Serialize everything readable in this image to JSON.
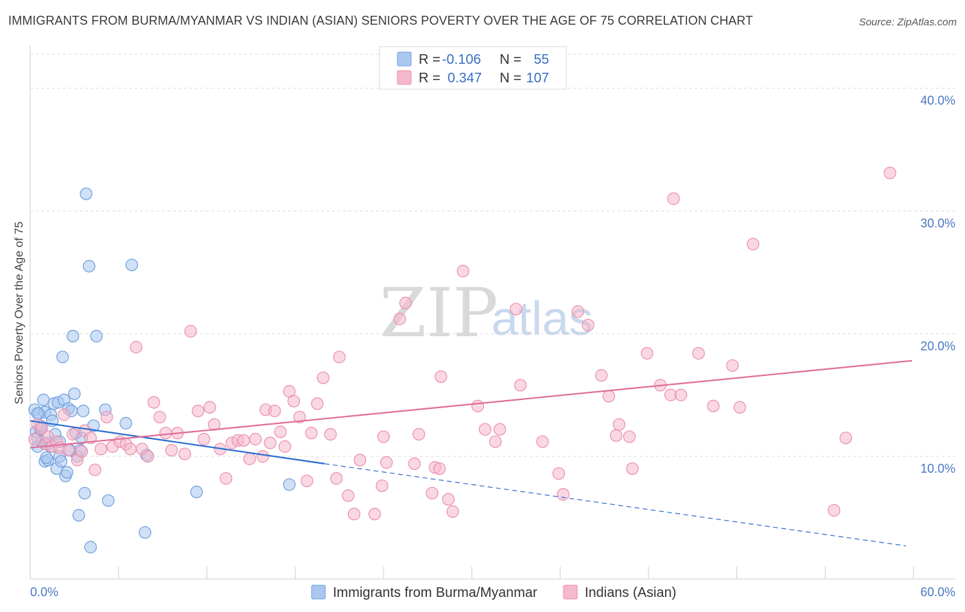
{
  "title": "IMMIGRANTS FROM BURMA/MYANMAR VS INDIAN (ASIAN) SENIORS POVERTY OVER THE AGE OF 75 CORRELATION CHART",
  "source": "Source: ZipAtlas.com",
  "watermark": {
    "zip": "ZIP",
    "atlas": "atlas"
  },
  "legend": {
    "rows": [
      {
        "r_label": "R =",
        "r_value": "-0.106",
        "n_label": "N =",
        "n_value": "55",
        "color": "#a9c7ef"
      },
      {
        "r_label": "R =",
        "r_value": "0.347",
        "n_label": "N =",
        "n_value": "107",
        "color": "#f6b8cb"
      }
    ]
  },
  "bottom_legend": [
    {
      "label": "Immigrants from Burma/Myanmar",
      "color": "#a9c7ef"
    },
    {
      "label": "Indians (Asian)",
      "color": "#f6b8cb"
    }
  ],
  "chart_data": {
    "type": "scatter",
    "title": "IMMIGRANTS FROM BURMA/MYANMAR VS INDIAN (ASIAN) SENIORS POVERTY OVER THE AGE OF 75 CORRELATION CHART",
    "xlabel": "",
    "ylabel": "Seniors Poverty Over the Age of 75",
    "xlim": [
      0,
      60
    ],
    "ylim": [
      0,
      43
    ],
    "x_tick_labels": [
      "0.0%",
      "60.0%"
    ],
    "y_ticks": [
      10,
      20,
      30,
      40
    ],
    "y_tick_labels": [
      "10.0%",
      "20.0%",
      "30.0%",
      "40.0%"
    ],
    "grid": true,
    "series": [
      {
        "name": "Immigrants from Burma/Myanmar",
        "color": "#a9c7ef",
        "edge": "#6f9fdc",
        "trend": {
          "x0": 0,
          "y0": 12.9,
          "x1": 20,
          "y1": 9.4,
          "dash_to_x": 59.5,
          "dash_to_y": 2.7,
          "color": "#2f6fd0"
        },
        "points": [
          [
            0.3,
            13.8
          ],
          [
            0.4,
            12.0
          ],
          [
            0.5,
            11.5
          ],
          [
            0.5,
            10.8
          ],
          [
            0.6,
            13.5
          ],
          [
            0.7,
            12.2
          ],
          [
            0.8,
            11.2
          ],
          [
            0.9,
            14.6
          ],
          [
            1.0,
            13.6
          ],
          [
            1.1,
            11.0
          ],
          [
            1.0,
            9.6
          ],
          [
            1.2,
            9.7
          ],
          [
            1.3,
            11.1
          ],
          [
            1.4,
            13.4
          ],
          [
            1.5,
            12.9
          ],
          [
            1.6,
            14.3
          ],
          [
            1.7,
            11.8
          ],
          [
            1.8,
            9.0
          ],
          [
            1.9,
            14.4
          ],
          [
            2.0,
            10.0
          ],
          [
            2.1,
            9.6
          ],
          [
            2.2,
            18.1
          ],
          [
            2.3,
            14.6
          ],
          [
            2.4,
            8.4
          ],
          [
            2.5,
            8.7
          ],
          [
            2.6,
            13.9
          ],
          [
            2.7,
            10.5
          ],
          [
            2.8,
            13.7
          ],
          [
            2.9,
            19.8
          ],
          [
            3.0,
            15.1
          ],
          [
            3.1,
            11.9
          ],
          [
            3.2,
            10.0
          ],
          [
            3.3,
            5.2
          ],
          [
            3.5,
            11.5
          ],
          [
            3.6,
            13.7
          ],
          [
            3.7,
            7.0
          ],
          [
            3.8,
            31.4
          ],
          [
            4.0,
            25.5
          ],
          [
            4.1,
            2.6
          ],
          [
            4.3,
            12.5
          ],
          [
            4.5,
            19.8
          ],
          [
            5.1,
            13.8
          ],
          [
            5.3,
            6.4
          ],
          [
            6.5,
            12.7
          ],
          [
            6.9,
            25.6
          ],
          [
            7.8,
            3.8
          ],
          [
            7.9,
            10.1
          ],
          [
            11.3,
            7.1
          ],
          [
            17.6,
            7.7
          ],
          [
            0.5,
            13.5
          ],
          [
            1.4,
            10.8
          ],
          [
            2.0,
            11.2
          ],
          [
            0.7,
            12.5
          ],
          [
            3.4,
            10.5
          ],
          [
            1.1,
            9.9
          ]
        ]
      },
      {
        "name": "Indians (Asian)",
        "color": "#f6b8cb",
        "edge": "#ea8fad",
        "trend": {
          "x0": 0,
          "y0": 10.7,
          "x1": 59.9,
          "y1": 17.8,
          "color": "#e0719a"
        },
        "points": [
          [
            0.3,
            11.4
          ],
          [
            0.5,
            12.6
          ],
          [
            0.8,
            12.3
          ],
          [
            1.0,
            11.0
          ],
          [
            1.2,
            11.6
          ],
          [
            1.5,
            10.8
          ],
          [
            1.8,
            11.2
          ],
          [
            2.0,
            10.7
          ],
          [
            2.3,
            13.4
          ],
          [
            2.6,
            10.5
          ],
          [
            2.9,
            11.8
          ],
          [
            3.2,
            9.7
          ],
          [
            3.5,
            10.4
          ],
          [
            3.7,
            12.1
          ],
          [
            4.1,
            11.5
          ],
          [
            4.4,
            8.9
          ],
          [
            4.8,
            10.6
          ],
          [
            5.2,
            13.2
          ],
          [
            5.6,
            10.8
          ],
          [
            6.1,
            11.2
          ],
          [
            6.5,
            11.0
          ],
          [
            6.8,
            10.6
          ],
          [
            7.2,
            18.9
          ],
          [
            7.6,
            10.6
          ],
          [
            8.0,
            10.0
          ],
          [
            8.4,
            14.4
          ],
          [
            8.8,
            13.2
          ],
          [
            9.2,
            11.9
          ],
          [
            9.6,
            10.5
          ],
          [
            10.0,
            11.9
          ],
          [
            10.5,
            10.2
          ],
          [
            10.9,
            20.2
          ],
          [
            11.4,
            13.7
          ],
          [
            11.8,
            11.4
          ],
          [
            12.2,
            14.0
          ],
          [
            12.5,
            12.6
          ],
          [
            12.9,
            10.6
          ],
          [
            13.3,
            8.2
          ],
          [
            13.7,
            11.1
          ],
          [
            14.1,
            11.3
          ],
          [
            14.5,
            11.3
          ],
          [
            14.9,
            9.8
          ],
          [
            15.3,
            11.4
          ],
          [
            15.8,
            10.0
          ],
          [
            16.0,
            13.8
          ],
          [
            16.3,
            11.1
          ],
          [
            16.6,
            13.7
          ],
          [
            17.0,
            12.0
          ],
          [
            17.3,
            10.8
          ],
          [
            17.6,
            15.3
          ],
          [
            17.9,
            14.5
          ],
          [
            18.3,
            13.2
          ],
          [
            18.8,
            8.0
          ],
          [
            19.1,
            11.9
          ],
          [
            19.5,
            14.3
          ],
          [
            19.9,
            16.4
          ],
          [
            20.4,
            11.8
          ],
          [
            20.8,
            8.2
          ],
          [
            21.0,
            18.1
          ],
          [
            21.6,
            6.8
          ],
          [
            22.0,
            5.3
          ],
          [
            22.4,
            9.7
          ],
          [
            23.4,
            5.3
          ],
          [
            23.9,
            7.6
          ],
          [
            24.0,
            11.6
          ],
          [
            24.2,
            9.5
          ],
          [
            25.1,
            21.2
          ],
          [
            25.5,
            22.5
          ],
          [
            26.1,
            9.4
          ],
          [
            26.4,
            11.8
          ],
          [
            27.3,
            7.0
          ],
          [
            27.5,
            9.1
          ],
          [
            27.8,
            9.0
          ],
          [
            27.9,
            16.5
          ],
          [
            28.4,
            6.5
          ],
          [
            28.7,
            5.5
          ],
          [
            29.4,
            25.1
          ],
          [
            30.4,
            14.1
          ],
          [
            30.9,
            12.2
          ],
          [
            31.6,
            11.2
          ],
          [
            31.9,
            12.2
          ],
          [
            33.0,
            22.0
          ],
          [
            33.3,
            15.8
          ],
          [
            34.8,
            11.2
          ],
          [
            35.9,
            8.6
          ],
          [
            36.2,
            6.9
          ],
          [
            37.2,
            21.8
          ],
          [
            37.9,
            20.7
          ],
          [
            38.8,
            16.6
          ],
          [
            39.3,
            14.9
          ],
          [
            40.0,
            12.6
          ],
          [
            39.8,
            11.7
          ],
          [
            40.7,
            11.6
          ],
          [
            40.9,
            9.0
          ],
          [
            41.9,
            18.4
          ],
          [
            42.8,
            15.8
          ],
          [
            43.5,
            15.0
          ],
          [
            44.2,
            15.0
          ],
          [
            45.4,
            18.4
          ],
          [
            46.4,
            14.1
          ],
          [
            47.7,
            17.4
          ],
          [
            48.2,
            14.0
          ],
          [
            49.1,
            27.3
          ],
          [
            43.7,
            31.0
          ],
          [
            55.4,
            11.5
          ],
          [
            54.6,
            5.6
          ],
          [
            58.4,
            33.1
          ]
        ]
      }
    ]
  }
}
